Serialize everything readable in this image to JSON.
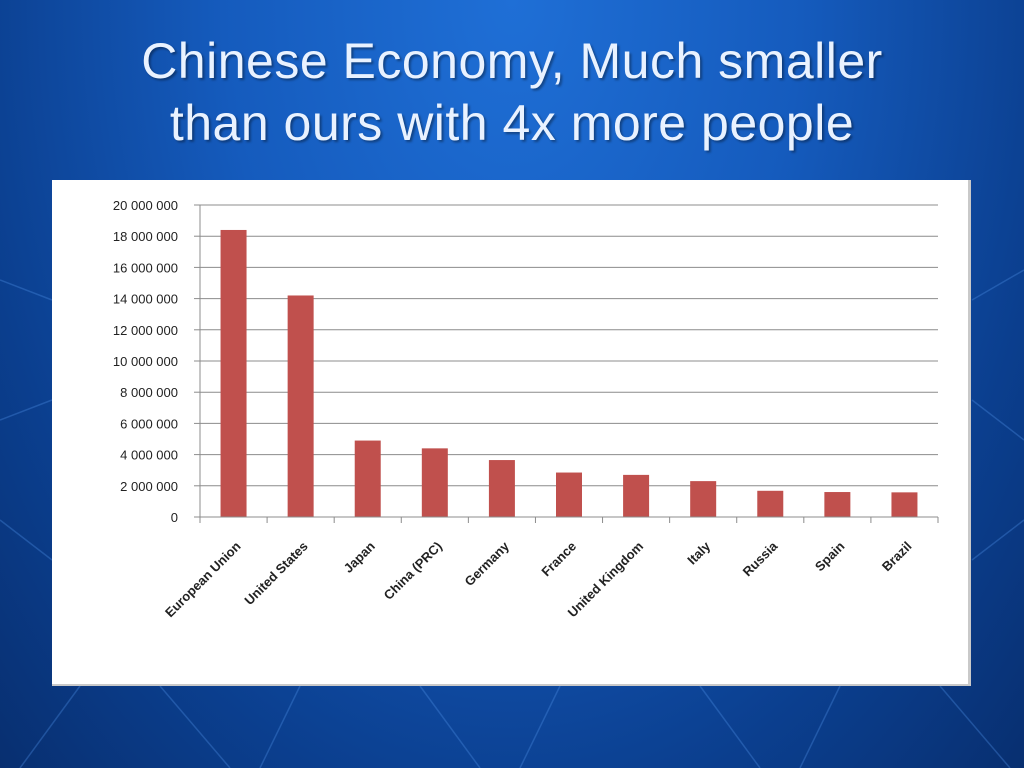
{
  "slide": {
    "title_line1": "Chinese Economy, Much smaller",
    "title_line2": "than ours with 4x more people"
  },
  "colors": {
    "background": "#155bbd",
    "bar": "#c0504d",
    "title_text": "#e9f2ff"
  },
  "chart_data": {
    "type": "bar",
    "title": "",
    "xlabel": "",
    "ylabel": "",
    "categories": [
      "European Union",
      "United States",
      "Japan",
      "China (PRC)",
      "Germany",
      "France",
      "United Kingdom",
      "Italy",
      "Russia",
      "Spain",
      "Brazil"
    ],
    "values": [
      18400000,
      14200000,
      4900000,
      4400000,
      3650000,
      2850000,
      2700000,
      2300000,
      1680000,
      1600000,
      1580000
    ],
    "ylim": [
      0,
      20000000
    ],
    "yticks": [
      0,
      2000000,
      4000000,
      6000000,
      8000000,
      10000000,
      12000000,
      14000000,
      16000000,
      18000000,
      20000000
    ],
    "ytick_labels": [
      "0",
      "2 000 000",
      "4 000 000",
      "6 000 000",
      "8 000 000",
      "10 000 000",
      "12 000 000",
      "14 000 000",
      "16 000 000",
      "18 000 000",
      "20 000 000"
    ],
    "grid": true,
    "legend": "none"
  }
}
